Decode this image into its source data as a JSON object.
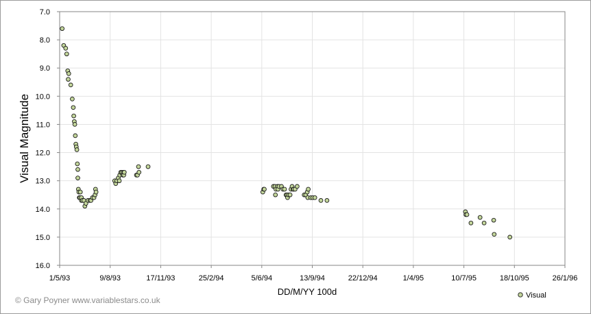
{
  "credit": "© Gary Poyner  www.variablestars.co.uk",
  "colors": {
    "marker_fill": "#c3d69b",
    "marker_stroke": "#1a1a1a",
    "grid": "#e3e3e3",
    "axis": "#868686",
    "frame": "#9a9a9a"
  },
  "chart_data": {
    "type": "scatter",
    "title": "",
    "xlabel": "DD/M/YY  100d",
    "ylabel": "Visual Magnitude",
    "y_inverted": true,
    "ylim": [
      7.0,
      16.0
    ],
    "xlim": [
      "1993-05-01",
      "1996-01-26"
    ],
    "x_ticks": [
      "1/5/93",
      "9/8/93",
      "17/11/93",
      "25/2/94",
      "5/6/94",
      "13/9/94",
      "22/12/94",
      "1/4/95",
      "10/7/95",
      "18/10/95",
      "26/1/96"
    ],
    "y_ticks": [
      "7.0",
      "8.0",
      "9.0",
      "10.0",
      "11.0",
      "12.0",
      "13.0",
      "14.0",
      "15.0",
      "16.0"
    ],
    "grid": true,
    "legend_position": "bottom-right",
    "series": [
      {
        "name": "Visual",
        "marker": "circle",
        "points": [
          [
            "1993-05-06",
            7.6
          ],
          [
            "1993-05-09",
            8.2
          ],
          [
            "1993-05-13",
            8.3
          ],
          [
            "1993-05-15",
            8.5
          ],
          [
            "1993-05-17",
            9.1
          ],
          [
            "1993-05-18",
            9.4
          ],
          [
            "1993-05-19",
            9.2
          ],
          [
            "1993-05-23",
            9.6
          ],
          [
            "1993-05-26",
            10.1
          ],
          [
            "1993-05-28",
            10.4
          ],
          [
            "1993-05-29",
            10.7
          ],
          [
            "1993-05-30",
            10.9
          ],
          [
            "1993-05-31",
            11.0
          ],
          [
            "1993-06-01",
            11.4
          ],
          [
            "1993-06-02",
            11.7
          ],
          [
            "1993-06-03",
            11.8
          ],
          [
            "1993-06-04",
            11.9
          ],
          [
            "1993-06-05",
            12.4
          ],
          [
            "1993-06-06",
            12.6
          ],
          [
            "1993-06-06",
            12.9
          ],
          [
            "1993-06-07",
            13.3
          ],
          [
            "1993-06-08",
            13.4
          ],
          [
            "1993-06-09",
            13.6
          ],
          [
            "1993-06-10",
            13.6
          ],
          [
            "1993-06-11",
            13.4
          ],
          [
            "1993-06-13",
            13.7
          ],
          [
            "1993-06-13",
            13.6
          ],
          [
            "1993-06-15",
            13.7
          ],
          [
            "1993-06-18",
            13.7
          ],
          [
            "1993-06-20",
            13.9
          ],
          [
            "1993-06-22",
            13.8
          ],
          [
            "1993-06-26",
            13.7
          ],
          [
            "1993-06-30",
            13.7
          ],
          [
            "1993-07-02",
            13.7
          ],
          [
            "1993-07-05",
            13.6
          ],
          [
            "1993-07-08",
            13.6
          ],
          [
            "1993-07-10",
            13.5
          ],
          [
            "1993-07-11",
            13.3
          ],
          [
            "1993-07-12",
            13.4
          ],
          [
            "1993-08-18",
            13.0
          ],
          [
            "1993-08-20",
            13.1
          ],
          [
            "1993-08-22",
            13.0
          ],
          [
            "1993-08-25",
            12.9
          ],
          [
            "1993-08-27",
            13.0
          ],
          [
            "1993-08-28",
            12.8
          ],
          [
            "1993-08-30",
            12.7
          ],
          [
            "1993-09-01",
            12.7
          ],
          [
            "1993-09-03",
            12.8
          ],
          [
            "1993-09-04",
            12.7
          ],
          [
            "1993-09-05",
            12.8
          ],
          [
            "1993-09-06",
            12.7
          ],
          [
            "1993-09-30",
            12.8
          ],
          [
            "1993-10-02",
            12.8
          ],
          [
            "1993-10-04",
            12.5
          ],
          [
            "1993-10-05",
            12.7
          ],
          [
            "1993-10-23",
            12.5
          ],
          [
            "1994-06-07",
            13.4
          ],
          [
            "1994-06-09",
            13.3
          ],
          [
            "1994-06-10",
            13.3
          ],
          [
            "1994-06-28",
            13.2
          ],
          [
            "1994-07-01",
            13.2
          ],
          [
            "1994-07-02",
            13.5
          ],
          [
            "1994-07-03",
            13.3
          ],
          [
            "1994-07-06",
            13.2
          ],
          [
            "1994-07-07",
            13.3
          ],
          [
            "1994-07-09",
            13.2
          ],
          [
            "1994-07-14",
            13.2
          ],
          [
            "1994-07-17",
            13.3
          ],
          [
            "1994-07-20",
            13.3
          ],
          [
            "1994-07-23",
            13.5
          ],
          [
            "1994-07-25",
            13.5
          ],
          [
            "1994-07-26",
            13.6
          ],
          [
            "1994-07-28",
            13.5
          ],
          [
            "1994-07-31",
            13.5
          ],
          [
            "1994-08-02",
            13.3
          ],
          [
            "1994-08-04",
            13.2
          ],
          [
            "1994-08-06",
            13.3
          ],
          [
            "1994-08-07",
            13.3
          ],
          [
            "1994-08-10",
            13.3
          ],
          [
            "1994-08-14",
            13.2
          ],
          [
            "1994-08-28",
            13.5
          ],
          [
            "1994-08-31",
            13.5
          ],
          [
            "1994-09-03",
            13.4
          ],
          [
            "1994-09-04",
            13.6
          ],
          [
            "1994-09-05",
            13.3
          ],
          [
            "1994-09-10",
            13.6
          ],
          [
            "1994-09-14",
            13.6
          ],
          [
            "1994-09-18",
            13.6
          ],
          [
            "1994-09-30",
            13.7
          ],
          [
            "1994-10-12",
            13.7
          ],
          [
            "1995-07-13",
            14.1
          ],
          [
            "1995-07-14",
            14.2
          ],
          [
            "1995-07-16",
            14.2
          ],
          [
            "1995-07-24",
            14.5
          ],
          [
            "1995-08-11",
            14.3
          ],
          [
            "1995-08-19",
            14.5
          ],
          [
            "1995-09-07",
            14.4
          ],
          [
            "1995-09-08",
            14.9
          ],
          [
            "1995-10-09",
            15.0
          ]
        ]
      }
    ]
  }
}
